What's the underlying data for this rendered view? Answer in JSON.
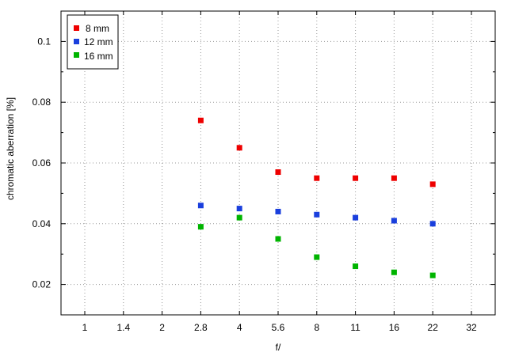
{
  "chart_data": {
    "type": "scatter",
    "xlabel": "f/",
    "ylabel": "chromatic aberration [%]",
    "x_scale": "log",
    "x_ticks": [
      "1",
      "1.4",
      "2",
      "2.8",
      "4",
      "5.6",
      "8",
      "11",
      "16",
      "22",
      "32"
    ],
    "y_ticks": [
      "0.02",
      "0.04",
      "0.06",
      "0.08",
      "0.1"
    ],
    "ylim": [
      0.01,
      0.11
    ],
    "grid": true,
    "legend_position": "top-left",
    "series": [
      {
        "name": "8 mm",
        "color": "#ee0000",
        "x": [
          "2.8",
          "4",
          "5.6",
          "8",
          "11",
          "16",
          "22"
        ],
        "values": [
          0.074,
          0.065,
          0.057,
          0.055,
          0.055,
          0.055,
          0.053
        ]
      },
      {
        "name": "12 mm",
        "color": "#1a3fdd",
        "x": [
          "2.8",
          "4",
          "5.6",
          "8",
          "11",
          "16",
          "22"
        ],
        "values": [
          0.046,
          0.045,
          0.044,
          0.043,
          0.042,
          0.041,
          0.04
        ]
      },
      {
        "name": "16 mm",
        "color": "#00b400",
        "x": [
          "2.8",
          "4",
          "5.6",
          "8",
          "11",
          "16",
          "22"
        ],
        "values": [
          0.039,
          0.042,
          0.035,
          0.029,
          0.026,
          0.024,
          0.023
        ]
      }
    ]
  }
}
